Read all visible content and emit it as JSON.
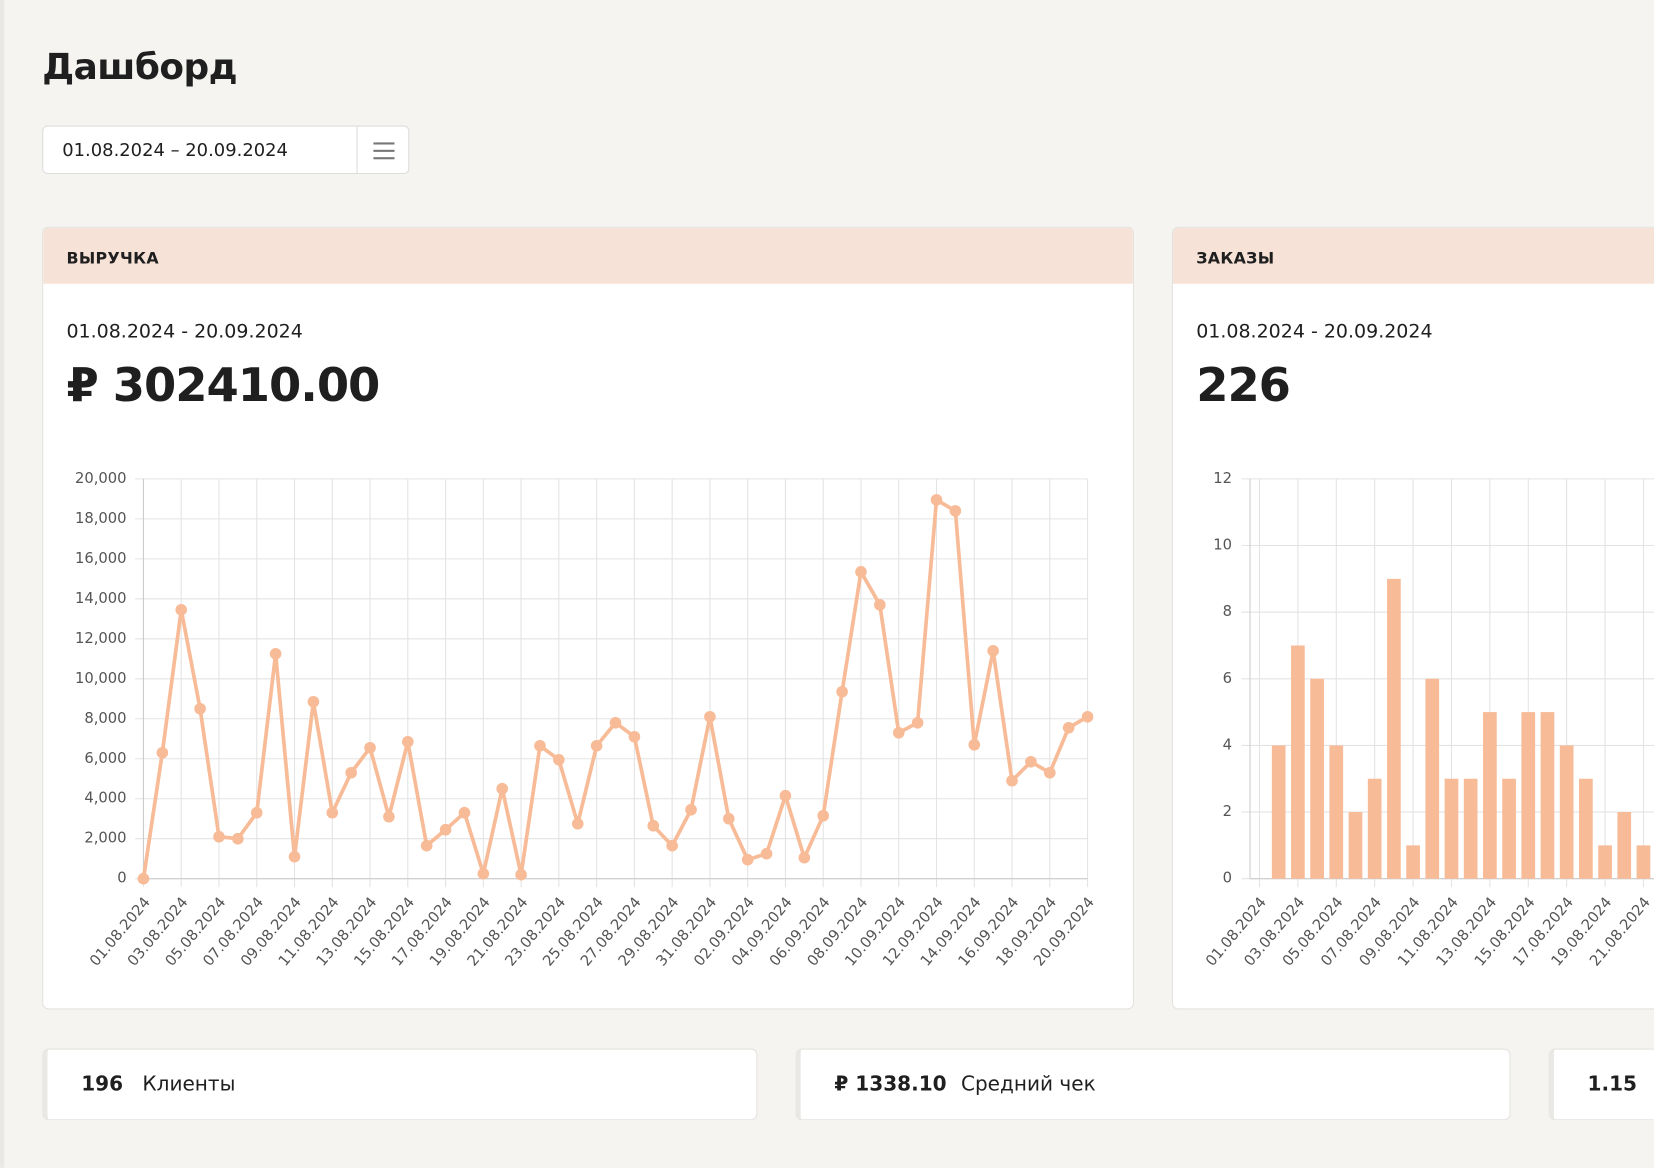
{
  "header": {
    "title": "Дашборд",
    "date_range": "01.08.2024 – 20.09.2024"
  },
  "cards": [
    {
      "title": "ВЫРУЧКА",
      "period": "01.08.2024 - 20.09.2024",
      "value": "₽ 302410.00"
    },
    {
      "title": "ЗАКАЗЫ",
      "period": "01.08.2024 - 20.09.2024",
      "value": "226"
    }
  ],
  "stats": [
    {
      "value": "196",
      "label": "Клиенты"
    },
    {
      "value": "₽ 1338.10",
      "label": "Средний чек"
    },
    {
      "value": "1.15"
    }
  ],
  "chart_data": [
    {
      "type": "line",
      "color": "#f8bb97",
      "grid": true,
      "categories": [
        "01.08.2024",
        null,
        "03.08.2024",
        null,
        "05.08.2024",
        null,
        "07.08.2024",
        null,
        "09.08.2024",
        null,
        "11.08.2024",
        null,
        "13.08.2024",
        null,
        "15.08.2024",
        null,
        "17.08.2024",
        null,
        "19.08.2024",
        null,
        "21.08.2024",
        null,
        "23.08.2024",
        null,
        "25.08.2024",
        null,
        "27.08.2024",
        null,
        "29.08.2024",
        null,
        "31.08.2024",
        null,
        "02.09.2024",
        null,
        "04.09.2024",
        null,
        "06.09.2024",
        null,
        "08.09.2024",
        null,
        "10.09.2024",
        null,
        "12.09.2024",
        null,
        "14.09.2024",
        null,
        "16.09.2024",
        null,
        "18.09.2024",
        null,
        "20.09.2024"
      ],
      "values": [
        0,
        6300,
        13450,
        8500,
        2100,
        2000,
        3300,
        11250,
        1100,
        8850,
        3300,
        5300,
        6550,
        3100,
        6850,
        1650,
        2450,
        3300,
        250,
        4500,
        200,
        6650,
        5950,
        2750,
        6650,
        7800,
        7100,
        2650,
        1650,
        3450,
        8100,
        3000,
        950,
        1250,
        4150,
        1050,
        3150,
        9350,
        15350,
        13700,
        7300,
        7800,
        18950,
        18400,
        6700,
        11400,
        4900,
        5850,
        5300,
        7550,
        8100
      ],
      "ylim": [
        0,
        20000
      ],
      "yticks": [
        0,
        {
          "value": 2000,
          "label": "2,000"
        },
        {
          "value": 4000,
          "label": "4,000"
        },
        {
          "value": 6000,
          "label": "6,000"
        },
        {
          "value": 8000,
          "label": "8,000"
        },
        {
          "value": 10000,
          "label": "10,000"
        },
        {
          "value": 12000,
          "label": "12,000"
        },
        {
          "value": 14000,
          "label": "14,000"
        },
        {
          "value": 16000,
          "label": "16,000"
        },
        {
          "value": 18000,
          "label": "18,000"
        },
        {
          "value": 20000,
          "label": "20,000"
        }
      ]
    },
    {
      "type": "bar",
      "color": "#f8bb97",
      "grid": true,
      "categories": [
        "01.08.2024",
        null,
        "03.08.2024",
        null,
        "05.08.2024",
        null,
        "07.08.2024",
        null,
        "09.08.2024",
        null,
        "11.08.2024",
        null,
        "13.08.2024",
        null,
        "15.08.2024",
        null,
        "17.08.2024",
        null,
        "19.08.2024",
        null,
        "21.08.2024"
      ],
      "values": [
        0,
        4,
        7,
        6,
        4,
        2,
        3,
        9,
        1,
        6,
        3,
        3,
        5,
        3,
        5,
        5,
        4,
        3,
        1,
        2,
        1
      ],
      "ylim": [
        0,
        12
      ],
      "yticks": [
        0,
        2,
        4,
        6,
        8,
        10,
        12
      ]
    }
  ]
}
